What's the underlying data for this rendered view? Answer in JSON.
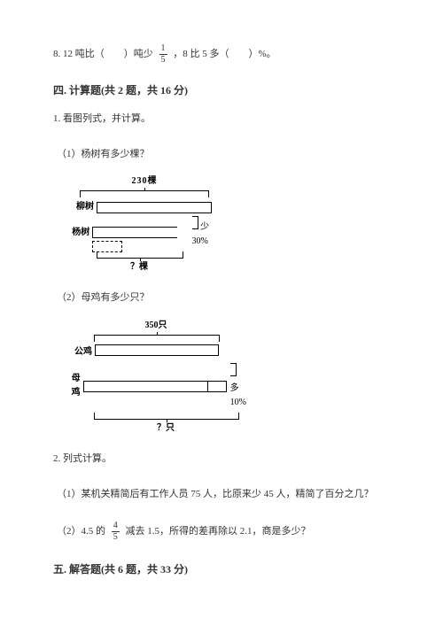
{
  "q8": {
    "prefix": "8. 12 吨比（　　）吨少",
    "frac_n": "1",
    "frac_d": "5",
    "suffix": "，8 比 5 多（　　）%。"
  },
  "sec4": {
    "heading": "四. 计算题(共 2 题，共 16 分)",
    "q1": {
      "title": "1. 看图列式，并计算。",
      "p1": "（1）杨树有多少棵？",
      "fig1": {
        "top": "230棵",
        "row1_label": "柳树",
        "row2_label": "杨树",
        "side": "少30%",
        "bottom": "？棵"
      },
      "p2": "（2）母鸡有多少只？",
      "fig2": {
        "top": "350只",
        "row1_label": "公鸡",
        "row2_label": "母鸡",
        "side": "多10%",
        "bottom": "？只"
      }
    },
    "q2": {
      "title": "2. 列式计算。",
      "p1": "（1）某机关精简后有工作人员 75 人，比原来少 45 人，精简了百分之几？",
      "p2_a": "（2）4.5 的",
      "p2_frac_n": "4",
      "p2_frac_d": "5",
      "p2_b": "减去 1.5，所得的差再除以 2.1，商是多少？"
    }
  },
  "sec5": {
    "heading": "五. 解答题(共 6 题，共 33 分)"
  }
}
